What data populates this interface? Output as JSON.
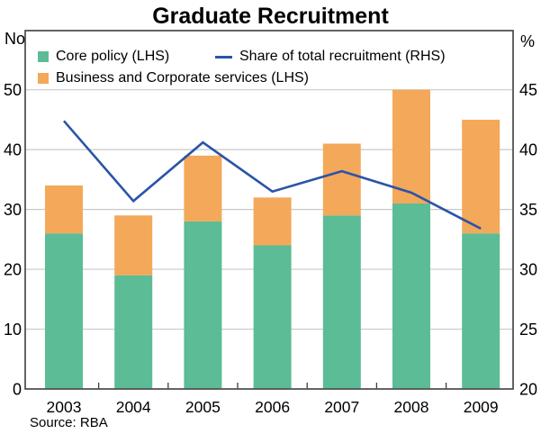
{
  "title": "Graduate Recruitment",
  "source_note": "Source: RBA",
  "axes": {
    "left_unit": "No",
    "right_unit": "%",
    "left_ticks": [
      0,
      10,
      20,
      30,
      40,
      50
    ],
    "right_ticks": [
      20,
      25,
      30,
      35,
      40,
      45
    ],
    "left_range": [
      0,
      60
    ],
    "right_range": [
      20,
      50
    ]
  },
  "legend": {
    "core": {
      "label": "Core policy (LHS)",
      "color": "#5bbc95"
    },
    "business": {
      "label": "Business and Corporate services (LHS)",
      "color": "#f4a85a"
    },
    "share": {
      "label": "Share of total recruitment (RHS)",
      "color": "#2b54a8"
    }
  },
  "colors": {
    "core_bar": "#5bbc95",
    "business_bar": "#f4a85a",
    "share_line": "#2b54a8",
    "gridline": "#c9c9c9",
    "frame": "#3d3d3d"
  },
  "chart_data": {
    "type": "combo",
    "title": "Graduate Recruitment",
    "categories": [
      "2003",
      "2004",
      "2005",
      "2006",
      "2007",
      "2008",
      "2009"
    ],
    "series": [
      {
        "name": "Core policy (LHS)",
        "type": "bar",
        "stack": "bars",
        "axis": "left",
        "color": "#5bbc95",
        "values": [
          26,
          19,
          28,
          24,
          29,
          31,
          26
        ]
      },
      {
        "name": "Business and Corporate services (LHS)",
        "type": "bar",
        "stack": "bars",
        "axis": "left",
        "color": "#f4a85a",
        "values": [
          8,
          10,
          11,
          8,
          12,
          19,
          19
        ]
      },
      {
        "name": "Share of total recruitment (RHS)",
        "type": "line",
        "axis": "right",
        "color": "#2b54a8",
        "values": [
          42.4,
          35.7,
          40.6,
          36.5,
          38.2,
          36.4,
          33.4
        ]
      }
    ],
    "bar_totals": [
      34,
      29,
      39,
      32,
      41,
      50,
      45
    ],
    "left_axis_label": "No",
    "right_axis_label": "%",
    "left_ylim": [
      0,
      60
    ],
    "right_ylim": [
      20,
      50
    ],
    "grid": true,
    "legend_position": "top-inside"
  }
}
